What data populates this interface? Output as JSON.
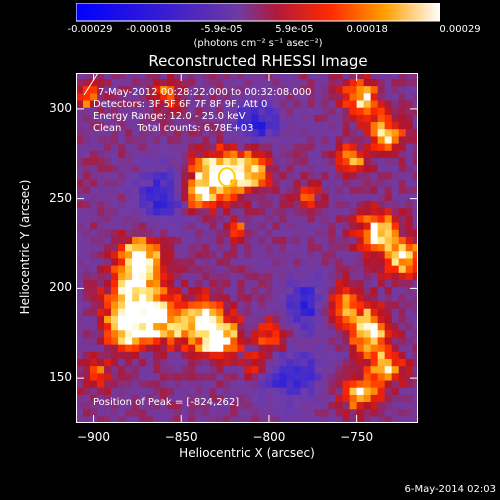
{
  "colorbar": {
    "ticks": [
      "-0.00029",
      "-0.00018",
      "-5.9e-05",
      "5.9e-05",
      "0.00018",
      "0.00029"
    ],
    "unit_label": "(photons cm⁻² s⁻¹ asec⁻²)",
    "range": [
      -0.00029,
      0.00029
    ]
  },
  "chart_data": {
    "type": "heatmap",
    "title": "Reconstructed RHESSI Image",
    "xlabel": "Heliocentric X (arcsec)",
    "ylabel": "Heliocentric Y (arcsec)",
    "xlim": [
      -910,
      -715
    ],
    "ylim": [
      125,
      320
    ],
    "x_ticks": [
      -900,
      -850,
      -800,
      -750
    ],
    "y_ticks": [
      150,
      200,
      250,
      300
    ],
    "peak": {
      "x": -824,
      "y": 262
    },
    "annotations": [
      "7-May-2012 00:28:22.000 to 00:32:08.000",
      "Detectors: 3F 5F 6F 7F 8F 9F, Att 0",
      "Energy Range: 12.0 - 25.0 keV",
      "Clean     Total counts: 6.78E+03",
      "Position of Peak = [-824,262]"
    ],
    "colors": {
      "low": "#0000ff",
      "mid": "#7a3ab0",
      "high": "#ff0000",
      "top": "#ffffff"
    }
  },
  "footer": {
    "date": "6-May-2014 02:03"
  }
}
